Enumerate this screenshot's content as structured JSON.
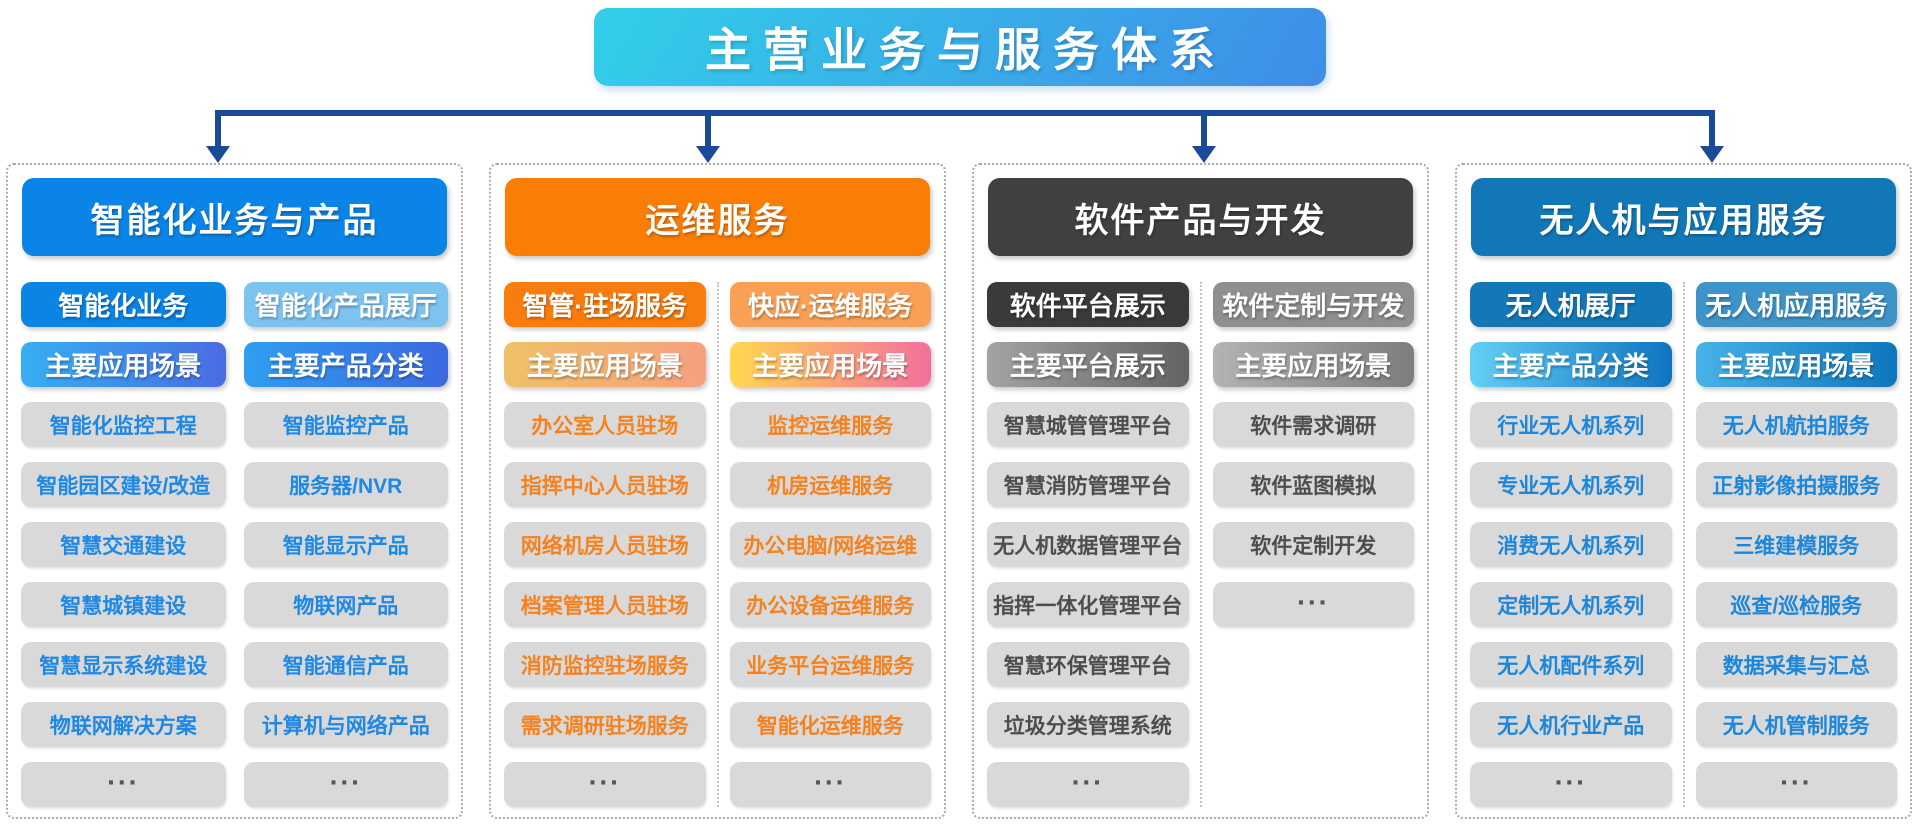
{
  "title": "主营业务与服务体系",
  "palette": {
    "title_gradient": [
      "#32cfe8",
      "#3e8de8"
    ],
    "connector": "#1b4a9b",
    "item_bg": "#d9d9d9",
    "column_border": "#aaaaaa"
  },
  "columns": [
    {
      "header": "智能化业务与产品",
      "divider": false,
      "theme": {
        "header_bg": "#0a84e6",
        "category_bg": [
          "#0b84e3",
          "#7cc3f0"
        ],
        "scene_bg": [
          [
            "#36aff2",
            "#4a6ce2"
          ],
          [
            "#2f9ef0",
            "#3d68e0"
          ]
        ],
        "item_text": "#1e88e5"
      },
      "sub_columns": [
        {
          "category": "智能化业务",
          "scene": "主要应用场景",
          "items": [
            "智能化监控工程",
            "智能园区建设/改造",
            "智慧交通建设",
            "智慧城镇建设",
            "智慧显示系统建设",
            "物联网解决方案",
            "..."
          ]
        },
        {
          "category": "智能化产品展厅",
          "scene": "主要产品分类",
          "items": [
            "智能监控产品",
            "服务器/NVR",
            "智能显示产品",
            "物联网产品",
            "智能通信产品",
            "计算机与网络产品",
            "..."
          ]
        }
      ]
    },
    {
      "header": "运维服务",
      "divider": true,
      "theme": {
        "header_bg": "#fa7d05",
        "category_bg": [
          "#f87d0e",
          "#f9a055"
        ],
        "scene_bg": [
          [
            "#eec168",
            "#f5a07e"
          ],
          [
            "#ffd84d",
            "#f2709e"
          ]
        ],
        "item_text": "#f5821f"
      },
      "sub_columns": [
        {
          "category": "智管·驻场服务",
          "scene": "主要应用场景",
          "items": [
            "办公室人员驻场",
            "指挥中心人员驻场",
            "网络机房人员驻场",
            "档案管理人员驻场",
            "消防监控驻场服务",
            "需求调研驻场服务",
            "..."
          ]
        },
        {
          "category": "快应·运维服务",
          "scene": "主要应用场景",
          "items": [
            "监控运维服务",
            "机房运维服务",
            "办公电脑/网络运维",
            "办公设备运维服务",
            "业务平台运维服务",
            "智能化运维服务",
            "..."
          ]
        }
      ]
    },
    {
      "header": "软件产品与开发",
      "divider": true,
      "theme": {
        "header_bg": "#404040",
        "category_bg": [
          "#3a3a3a",
          "#8f8f8f"
        ],
        "scene_bg": [
          [
            "#a3a3a3",
            "#636363"
          ],
          [
            "#b3b3b3",
            "#7d7d7d"
          ]
        ],
        "item_text": "#4d4d4d"
      },
      "sub_columns": [
        {
          "category": "软件平台展示",
          "scene": "主要平台展示",
          "items": [
            "智慧城管管理平台",
            "智慧消防管理平台",
            "无人机数据管理平台",
            "指挥一体化管理平台",
            "智慧环保管理平台",
            "垃圾分类管理系统",
            "..."
          ]
        },
        {
          "category": "软件定制与开发",
          "scene": "主要应用场景",
          "items": [
            "软件需求调研",
            "软件蓝图模拟",
            "软件定制开发",
            "..."
          ]
        }
      ]
    },
    {
      "header": "无人机与应用服务",
      "divider": true,
      "theme": {
        "header_bg": "#1277b7",
        "category_bg": [
          "#1478b8",
          "#3e93c8"
        ],
        "scene_bg": [
          [
            "#63d0f5",
            "#0f74c0"
          ],
          [
            "#47b2e8",
            "#0e76bb"
          ]
        ],
        "item_text": "#1c86da"
      },
      "sub_columns": [
        {
          "category": "无人机展厅",
          "scene": "主要产品分类",
          "items": [
            "行业无人机系列",
            "专业无人机系列",
            "消费无人机系列",
            "定制无人机系列",
            "无人机配件系列",
            "无人机行业产品",
            "..."
          ]
        },
        {
          "category": "无人机应用服务",
          "scene": "主要应用场景",
          "items": [
            "无人机航拍服务",
            "正射影像拍摄服务",
            "三维建模服务",
            "巡查/巡检服务",
            "数据采集与汇总",
            "无人机管制服务",
            "..."
          ]
        }
      ]
    }
  ]
}
